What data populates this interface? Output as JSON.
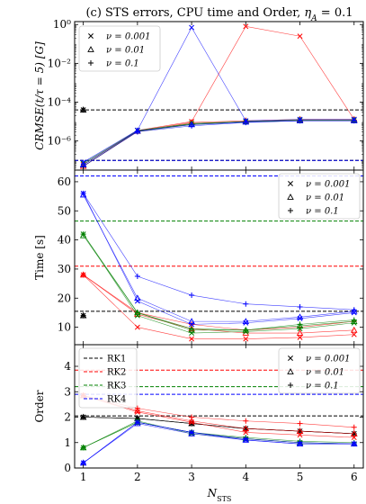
{
  "chart_data": {
    "title_prefix": "(c) STS errors, CPU time and Order, ",
    "title_math": "η",
    "title_sub": "A",
    "title_suffix": " = 0.1",
    "xlabel_main": "N",
    "xlabel_sub": "STS",
    "x": [
      1,
      2,
      3,
      4,
      5,
      6
    ],
    "x_ticks": [
      "1",
      "2",
      "3",
      "4",
      "5",
      "6"
    ],
    "nu_legend": [
      {
        "marker": "x",
        "label": "ν = 0.001"
      },
      {
        "marker": "triangle",
        "label": "ν = 0.01"
      },
      {
        "marker": "plus",
        "label": "ν = 0.1"
      }
    ],
    "rk_legend": [
      {
        "label": "RK1",
        "color": "#000000"
      },
      {
        "label": "RK2",
        "color": "#ff0000"
      },
      {
        "label": "RK3",
        "color": "#008000"
      },
      {
        "label": "RK4",
        "color": "#0000ff"
      }
    ],
    "colors": {
      "RK1": "#000000",
      "RK2": "#ff0000",
      "RK3": "#008000",
      "RK4": "#0000ff"
    },
    "panels": [
      {
        "id": "error",
        "type": "line",
        "scale": "log",
        "ylabel": "CRMSE(t/τ = 5) [G]",
        "ylim_exp": [
          -7.5,
          0.15
        ],
        "y_tick_exps": [
          0,
          -2,
          -4,
          -6
        ],
        "y_ticks": [
          "10⁰",
          "10⁻²",
          "10⁻⁴",
          "10⁻⁶"
        ],
        "hlines": {
          "RK1": 4e-05,
          "RK2": 1e-07,
          "RK3": 1e-07,
          "RK4": 1e-07
        },
        "series": [
          {
            "method": "RK1",
            "nu": "0.001",
            "values": [
              4e-05,
              null,
              null,
              null,
              null,
              null
            ]
          },
          {
            "method": "RK1",
            "nu": "0.01",
            "values": [
              4e-05,
              null,
              null,
              null,
              null,
              null
            ]
          },
          {
            "method": "RK1",
            "nu": "0.1",
            "values": [
              4e-05,
              null,
              null,
              null,
              null,
              null
            ]
          },
          {
            "method": "RK2",
            "nu": "0.001",
            "values": [
              6e-08,
              3.5e-06,
              1e-05,
              0.8,
              0.25,
              1.3e-05
            ]
          },
          {
            "method": "RK2",
            "nu": "0.01",
            "values": [
              5e-08,
              3.2e-06,
              9e-06,
              1.1e-05,
              1.3e-05,
              1.3e-05
            ]
          },
          {
            "method": "RK2",
            "nu": "0.1",
            "values": [
              5e-08,
              3e-06,
              8e-06,
              1e-05,
              1.2e-05,
              1.2e-05
            ]
          },
          {
            "method": "RK3",
            "nu": "0.001",
            "values": [
              7e-08,
              3.5e-06,
              8e-06,
              1e-05,
              1.2e-05,
              1.2e-05
            ]
          },
          {
            "method": "RK3",
            "nu": "0.01",
            "values": [
              6e-08,
              3.3e-06,
              7.5e-06,
              1e-05,
              1.2e-05,
              1.2e-05
            ]
          },
          {
            "method": "RK3",
            "nu": "0.1",
            "values": [
              5e-08,
              3.1e-06,
              7e-06,
              9.5e-06,
              1.1e-05,
              1.1e-05
            ]
          },
          {
            "method": "RK4",
            "nu": "0.001",
            "values": [
              8e-08,
              3.6e-06,
              0.7,
              1.1e-05,
              1.3e-05,
              1.3e-05
            ]
          },
          {
            "method": "RK4",
            "nu": "0.01",
            "values": [
              6e-08,
              3.3e-06,
              7e-06,
              9.5e-06,
              1.1e-05,
              1.1e-05
            ]
          },
          {
            "method": "RK4",
            "nu": "0.1",
            "values": [
              5e-08,
              3e-06,
              6e-06,
              9e-06,
              1.1e-05,
              1.1e-05
            ]
          }
        ]
      },
      {
        "id": "time",
        "type": "line",
        "scale": "linear",
        "ylabel": "Time [s]",
        "ylim": [
          4,
          64
        ],
        "y_ticks": [
          10,
          20,
          30,
          40,
          50,
          60
        ],
        "hlines": {
          "RK1": 15.5,
          "RK2": 31,
          "RK3": 46.5,
          "RK4": 62
        },
        "series": [
          {
            "method": "RK1",
            "nu": "0.001",
            "values": [
              14,
              null,
              null,
              null,
              null,
              null
            ]
          },
          {
            "method": "RK1",
            "nu": "0.01",
            "values": [
              14,
              null,
              null,
              null,
              null,
              null
            ]
          },
          {
            "method": "RK1",
            "nu": "0.1",
            "values": [
              14,
              null,
              null,
              null,
              null,
              null
            ]
          },
          {
            "method": "RK2",
            "nu": "0.001",
            "values": [
              28,
              10,
              6,
              6,
              6.5,
              7.5
            ]
          },
          {
            "method": "RK2",
            "nu": "0.01",
            "values": [
              28,
              14.5,
              9.5,
              8,
              8,
              9
            ]
          },
          {
            "method": "RK2",
            "nu": "0.1",
            "values": [
              28,
              15,
              11,
              9,
              10,
              12
            ]
          },
          {
            "method": "RK3",
            "nu": "0.001",
            "values": [
              42,
              14,
              8,
              8.5,
              9.5,
              11.5
            ]
          },
          {
            "method": "RK3",
            "nu": "0.01",
            "values": [
              41.5,
              15,
              9,
              9,
              10.5,
              12
            ]
          },
          {
            "method": "RK3",
            "nu": "0.1",
            "values": [
              42,
              15,
              9.5,
              9,
              11,
              12.5
            ]
          },
          {
            "method": "RK4",
            "nu": "0.001",
            "values": [
              56,
              19,
              11,
              11.5,
              13,
              15
            ]
          },
          {
            "method": "RK4",
            "nu": "0.01",
            "values": [
              55.5,
              20,
              12,
              12,
              13.5,
              15.5
            ]
          },
          {
            "method": "RK4",
            "nu": "0.1",
            "values": [
              56,
              27.5,
              21,
              18,
              17,
              16
            ]
          }
        ]
      },
      {
        "id": "order",
        "type": "line",
        "scale": "linear",
        "ylabel": "Order",
        "ylim": [
          0,
          4.85
        ],
        "y_ticks": [
          0,
          1,
          2,
          3,
          4
        ],
        "hlines": {
          "RK1": 2.05,
          "RK2": 3.85,
          "RK3": 3.2,
          "RK4": 2.9
        },
        "series": [
          {
            "method": "RK1",
            "nu": "0.001",
            "values": [
              2.0,
              1.95,
              1.75,
              1.55,
              1.45,
              1.35
            ]
          },
          {
            "method": "RK1",
            "nu": "0.01",
            "values": [
              2.0,
              1.95,
              1.75,
              1.55,
              1.45,
              1.35
            ]
          },
          {
            "method": "RK1",
            "nu": "0.1",
            "values": [
              2.0,
              1.95,
              1.75,
              1.55,
              1.45,
              1.35
            ]
          },
          {
            "method": "RK2",
            "nu": "0.001",
            "values": [
              2.85,
              2.2,
              1.8,
              1.4,
              1.3,
              1.2
            ]
          },
          {
            "method": "RK2",
            "nu": "0.01",
            "values": [
              2.85,
              2.25,
              1.85,
              1.55,
              1.45,
              1.35
            ]
          },
          {
            "method": "RK2",
            "nu": "0.1",
            "values": [
              2.85,
              2.35,
              2.0,
              1.85,
              1.75,
              1.6
            ]
          },
          {
            "method": "RK3",
            "nu": "0.001",
            "values": [
              0.8,
              1.85,
              1.35,
              1.15,
              1.0,
              0.95
            ]
          },
          {
            "method": "RK3",
            "nu": "0.01",
            "values": [
              0.8,
              1.8,
              1.4,
              1.15,
              1.0,
              0.95
            ]
          },
          {
            "method": "RK3",
            "nu": "0.1",
            "values": [
              0.8,
              1.8,
              1.4,
              1.2,
              1.05,
              1.0
            ]
          },
          {
            "method": "RK4",
            "nu": "0.001",
            "values": [
              0.2,
              1.8,
              1.4,
              1.1,
              0.95,
              0.95
            ]
          },
          {
            "method": "RK4",
            "nu": "0.01",
            "values": [
              0.2,
              1.75,
              1.35,
              1.1,
              0.95,
              0.95
            ]
          },
          {
            "method": "RK4",
            "nu": "0.1",
            "values": [
              0.2,
              1.8,
              1.4,
              1.15,
              1.0,
              0.95
            ]
          }
        ]
      }
    ]
  }
}
